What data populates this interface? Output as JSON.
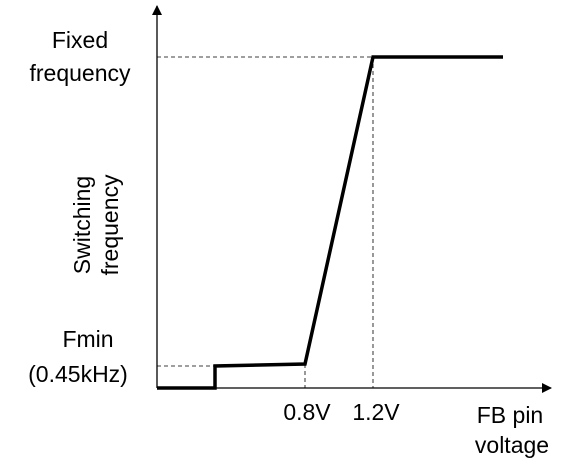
{
  "y_axis": {
    "top_label": [
      "Fixed",
      "frequency"
    ],
    "title": [
      "Switching",
      "frequency"
    ],
    "bottom_label": [
      "Fmin",
      "(0.45kHz)"
    ]
  },
  "x_axis": {
    "ticks": [
      "0.8V",
      "1.2V"
    ],
    "title": [
      "FB pin",
      "voltage"
    ]
  }
}
